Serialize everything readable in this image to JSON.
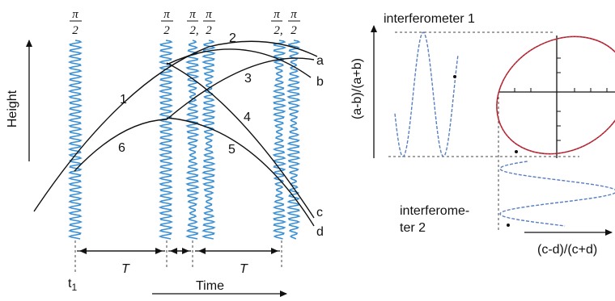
{
  "left_panel": {
    "pulse_labels": [
      {
        "top": "π",
        "bottom": "2"
      },
      {
        "top": "π",
        "bottom": "2"
      },
      {
        "top": "π",
        "bottom": "2,"
      },
      {
        "top": "π",
        "bottom": "2"
      },
      {
        "top": "π",
        "bottom": "2,"
      },
      {
        "top": "π",
        "bottom": "2"
      }
    ],
    "y_axis_label": "Height",
    "x_axis_label": "Time",
    "path_numbers": [
      "1",
      "2",
      "3",
      "4",
      "5",
      "6"
    ],
    "port_labels": [
      "a",
      "b",
      "c",
      "d"
    ],
    "time_symbol": "T",
    "t1_base": "t",
    "t1_sub": "1"
  },
  "right_panel": {
    "title_1": "interferometer 1",
    "title_2_line1": "interferome-",
    "title_2_line2": "ter 2",
    "y_axis_label": "(a-b)/(a+b)",
    "x_axis_label": "(c-d)/(c+d)"
  },
  "colors": {
    "wave": "#3a8fd4",
    "ellipse": "#d12a3a",
    "projection": "#5a7fc0",
    "ink": "#111111"
  }
}
